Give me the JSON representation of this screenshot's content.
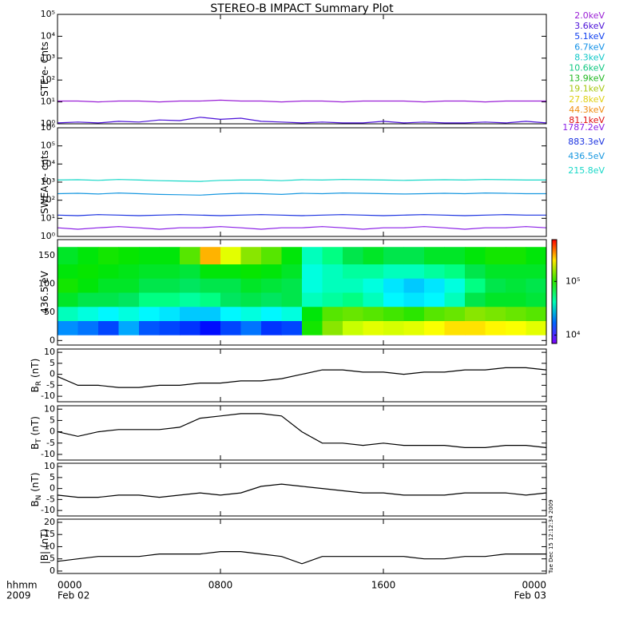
{
  "title": "STEREO-B IMPACT Summary Plot",
  "side_note": "Tue Dec 15 12:12:34 2009",
  "x_axis": {
    "label": "hhmm",
    "year": "2009",
    "xlim": [
      0,
      24
    ],
    "xticks": [
      {
        "value": 0,
        "label": "0000"
      },
      {
        "value": 8,
        "label": "0800"
      },
      {
        "value": 16,
        "label": "1600"
      },
      {
        "value": 24,
        "label": "0000"
      }
    ],
    "date_labels": [
      {
        "value": 0,
        "label": "Feb 02"
      },
      {
        "value": 24,
        "label": "Feb 03"
      }
    ]
  },
  "chart_data": [
    {
      "type": "line",
      "log_y": true,
      "y_label": "STE e- Cnts",
      "ylim": [
        1,
        100000
      ],
      "yticks": [
        {
          "value": 1,
          "label": "10⁰"
        },
        {
          "value": 10,
          "label": "10¹"
        },
        {
          "value": 100,
          "label": "10²"
        },
        {
          "value": 1000,
          "label": "10³"
        },
        {
          "value": 10000,
          "label": "10⁴"
        },
        {
          "value": 100000,
          "label": "10⁵"
        }
      ],
      "x": [
        0,
        1,
        2,
        3,
        4,
        5,
        6,
        7,
        8,
        9,
        10,
        11,
        12,
        13,
        14,
        15,
        16,
        17,
        18,
        19,
        20,
        21,
        22,
        23,
        24
      ],
      "series": [
        {
          "name": "2.0keV",
          "color": "#9a1fd6",
          "values": [
            11,
            11,
            10,
            11,
            11,
            10,
            11,
            11,
            12,
            11,
            11,
            10,
            11,
            11,
            10,
            11,
            11,
            11,
            10,
            11,
            11,
            10,
            11,
            11,
            11
          ]
        },
        {
          "name": "3.6keV",
          "color": "#4b10d8",
          "values": [
            1.1,
            1.2,
            1.1,
            1.3,
            1.2,
            1.5,
            1.4,
            2,
            1.6,
            1.8,
            1.3,
            1.2,
            1.1,
            1.2,
            1.1,
            1.1,
            1.3,
            1.1,
            1.2,
            1.1,
            1.1,
            1.2,
            1.1,
            1.3,
            1.1
          ]
        },
        {
          "name": "5.1keV",
          "color": "#1040f0",
          "values": [
            null,
            null,
            null,
            null,
            null,
            null,
            null,
            null,
            null,
            null,
            null,
            null,
            null,
            null,
            null,
            null,
            null,
            null,
            null,
            null,
            null,
            null,
            null,
            null,
            null
          ]
        },
        {
          "name": "6.7keV",
          "color": "#1090e8",
          "values": [
            null,
            null,
            null,
            null,
            null,
            null,
            null,
            null,
            null,
            null,
            null,
            null,
            null,
            null,
            null,
            null,
            null,
            null,
            null,
            null,
            null,
            null,
            null,
            null,
            null
          ]
        },
        {
          "name": "8.3keV",
          "color": "#10c8c8",
          "values": [
            null,
            null,
            null,
            null,
            null,
            null,
            null,
            null,
            null,
            null,
            null,
            null,
            null,
            null,
            null,
            null,
            null,
            null,
            null,
            null,
            null,
            null,
            null,
            null,
            null
          ]
        },
        {
          "name": "10.6keV",
          "color": "#10c880",
          "values": [
            null,
            null,
            null,
            null,
            null,
            null,
            null,
            null,
            null,
            null,
            null,
            null,
            null,
            null,
            null,
            null,
            null,
            null,
            null,
            null,
            null,
            null,
            null,
            null,
            null
          ]
        },
        {
          "name": "13.9keV",
          "color": "#20b820",
          "values": [
            null,
            null,
            null,
            null,
            null,
            null,
            null,
            null,
            null,
            null,
            null,
            null,
            null,
            null,
            null,
            null,
            null,
            null,
            null,
            null,
            null,
            null,
            null,
            null,
            null
          ]
        },
        {
          "name": "19.1keV",
          "color": "#a8c810",
          "values": [
            null,
            null,
            null,
            null,
            null,
            null,
            null,
            null,
            null,
            null,
            null,
            null,
            null,
            null,
            null,
            null,
            null,
            null,
            null,
            null,
            null,
            null,
            null,
            null,
            null
          ]
        },
        {
          "name": "27.8keV",
          "color": "#e0d010",
          "values": [
            null,
            null,
            null,
            null,
            null,
            null,
            null,
            null,
            null,
            null,
            null,
            null,
            null,
            null,
            null,
            null,
            null,
            null,
            null,
            null,
            null,
            null,
            null,
            null,
            null
          ]
        },
        {
          "name": "44.3keV",
          "color": "#f08c10",
          "values": [
            null,
            null,
            null,
            null,
            null,
            null,
            null,
            null,
            null,
            null,
            null,
            null,
            null,
            null,
            null,
            null,
            null,
            null,
            null,
            null,
            null,
            null,
            null,
            null,
            null
          ]
        },
        {
          "name": "81.1keV",
          "color": "#e01010",
          "values": [
            null,
            null,
            null,
            null,
            null,
            null,
            null,
            null,
            null,
            null,
            null,
            null,
            null,
            null,
            null,
            null,
            null,
            null,
            null,
            null,
            null,
            null,
            null,
            null,
            null
          ]
        }
      ]
    },
    {
      "type": "line",
      "log_y": true,
      "y_label": "SWEA e- cnts",
      "ylim": [
        1,
        1000000
      ],
      "yticks": [
        {
          "value": 1,
          "label": "10⁰"
        },
        {
          "value": 10,
          "label": "10¹"
        },
        {
          "value": 100,
          "label": "10²"
        },
        {
          "value": 1000,
          "label": "10³"
        },
        {
          "value": 10000,
          "label": "10⁴"
        },
        {
          "value": 100000,
          "label": "10⁵"
        },
        {
          "value": 1000000,
          "label": "10⁶"
        }
      ],
      "x": [
        0,
        1,
        2,
        3,
        4,
        5,
        6,
        7,
        8,
        9,
        10,
        11,
        12,
        13,
        14,
        15,
        16,
        17,
        18,
        19,
        20,
        21,
        22,
        23,
        24
      ],
      "series": [
        {
          "name": "1787.2eV",
          "color": "#8a1ee6",
          "values": [
            3,
            2.5,
            3,
            3.5,
            3,
            2.5,
            3,
            3,
            3.5,
            3,
            2.5,
            3,
            3,
            3.5,
            3,
            2.5,
            3,
            3,
            3.5,
            3,
            2.5,
            3,
            3,
            3.5,
            3
          ]
        },
        {
          "name": "883.3eV",
          "color": "#1830e0",
          "values": [
            15,
            14,
            16,
            15,
            14,
            15,
            16,
            15,
            14,
            15,
            16,
            15,
            14,
            15,
            16,
            15,
            14,
            15,
            16,
            15,
            14,
            15,
            16,
            15,
            15
          ]
        },
        {
          "name": "436.5eV",
          "color": "#1898e0",
          "values": [
            230,
            240,
            220,
            250,
            230,
            210,
            200,
            190,
            220,
            240,
            230,
            210,
            240,
            230,
            250,
            240,
            230,
            220,
            230,
            240,
            230,
            250,
            240,
            230,
            230
          ]
        },
        {
          "name": "215.8eV",
          "color": "#18d8c8",
          "values": [
            1300,
            1350,
            1250,
            1400,
            1300,
            1200,
            1150,
            1100,
            1250,
            1300,
            1300,
            1200,
            1350,
            1300,
            1400,
            1350,
            1300,
            1250,
            1300,
            1350,
            1300,
            1400,
            1350,
            1300,
            1300
          ]
        }
      ]
    },
    {
      "type": "heatmap",
      "y_label": "436.5 eV",
      "ylim": [
        -8,
        178
      ],
      "yticks": [
        0,
        50,
        100,
        150
      ],
      "x_bins": [
        0,
        1,
        2,
        3,
        4,
        5,
        6,
        7,
        8,
        9,
        10,
        11,
        12,
        13,
        14,
        15,
        16,
        17,
        18,
        19,
        20,
        21,
        22,
        23,
        24
      ],
      "y_bins": [
        10,
        35,
        60,
        85,
        110,
        135,
        165
      ],
      "color_lim": [
        7000,
        600000
      ],
      "color_ticks": [
        {
          "value": 10000,
          "label": "10⁴"
        },
        {
          "value": 100000,
          "label": "10⁵"
        }
      ],
      "values": [
        [
          20000,
          18000,
          15000,
          22000,
          16000,
          15000,
          14000,
          12000,
          15000,
          18000,
          14000,
          15000,
          90000,
          150000,
          180000,
          200000,
          190000,
          200000,
          220000,
          250000,
          250000,
          230000,
          220000,
          200000
        ],
        [
          40000,
          35000,
          30000,
          35000,
          30000,
          28000,
          25000,
          25000,
          30000,
          35000,
          30000,
          35000,
          80000,
          120000,
          130000,
          120000,
          110000,
          100000,
          120000,
          130000,
          150000,
          140000,
          130000,
          120000
        ],
        [
          70000,
          60000,
          60000,
          55000,
          50000,
          50000,
          45000,
          50000,
          55000,
          60000,
          55000,
          60000,
          40000,
          45000,
          50000,
          40000,
          30000,
          28000,
          30000,
          40000,
          60000,
          70000,
          70000,
          65000
        ],
        [
          90000,
          80000,
          70000,
          70000,
          60000,
          60000,
          55000,
          60000,
          60000,
          70000,
          65000,
          60000,
          35000,
          40000,
          40000,
          35000,
          28000,
          25000,
          28000,
          35000,
          50000,
          60000,
          65000,
          60000
        ],
        [
          80000,
          85000,
          80000,
          75000,
          70000,
          70000,
          65000,
          80000,
          80000,
          85000,
          80000,
          70000,
          35000,
          40000,
          45000,
          45000,
          40000,
          40000,
          45000,
          50000,
          60000,
          70000,
          70000,
          70000
        ],
        [
          70000,
          80000,
          90000,
          85000,
          80000,
          80000,
          120000,
          300000,
          200000,
          150000,
          120000,
          80000,
          40000,
          50000,
          60000,
          70000,
          60000,
          60000,
          70000,
          70000,
          80000,
          90000,
          90000,
          80000
        ]
      ]
    },
    {
      "type": "line",
      "y_label": "B",
      "y_label_sub": "R",
      "y_label_unit": " (nT)",
      "ylim": [
        -12.5,
        11.5
      ],
      "yticks": [
        -10,
        -5,
        0,
        5,
        10
      ],
      "x": [
        0,
        1,
        2,
        3,
        4,
        5,
        6,
        7,
        8,
        9,
        10,
        11,
        12,
        13,
        14,
        15,
        16,
        17,
        18,
        19,
        20,
        21,
        22,
        23,
        24
      ],
      "series": [
        {
          "color": "#000000",
          "values": [
            -1,
            -5,
            -5,
            -6,
            -6,
            -5,
            -5,
            -4,
            -4,
            -3,
            -3,
            -2,
            0,
            2,
            2,
            1,
            1,
            0,
            1,
            1,
            2,
            2,
            3,
            3,
            2
          ]
        }
      ]
    },
    {
      "type": "line",
      "y_label": "B",
      "y_label_sub": "T",
      "y_label_unit": " (nT)",
      "ylim": [
        -12.5,
        11.5
      ],
      "yticks": [
        -10,
        -5,
        0,
        5,
        10
      ],
      "x": [
        0,
        1,
        2,
        3,
        4,
        5,
        6,
        7,
        8,
        9,
        10,
        11,
        12,
        13,
        14,
        15,
        16,
        17,
        18,
        19,
        20,
        21,
        22,
        23,
        24
      ],
      "series": [
        {
          "color": "#000000",
          "values": [
            0,
            -2,
            0,
            1,
            1,
            1,
            2,
            6,
            7,
            8,
            8,
            7,
            0,
            -5,
            -5,
            -6,
            -5,
            -6,
            -6,
            -6,
            -7,
            -7,
            -6,
            -6,
            -7
          ]
        }
      ]
    },
    {
      "type": "line",
      "y_label": "B",
      "y_label_sub": "N",
      "y_label_unit": " (nT)",
      "ylim": [
        -12.5,
        11.5
      ],
      "yticks": [
        -10,
        -5,
        0,
        5,
        10
      ],
      "x": [
        0,
        1,
        2,
        3,
        4,
        5,
        6,
        7,
        8,
        9,
        10,
        11,
        12,
        13,
        14,
        15,
        16,
        17,
        18,
        19,
        20,
        21,
        22,
        23,
        24
      ],
      "series": [
        {
          "color": "#000000",
          "values": [
            -3,
            -4,
            -4,
            -3,
            -3,
            -4,
            -3,
            -2,
            -3,
            -2,
            1,
            2,
            1,
            0,
            -1,
            -2,
            -2,
            -3,
            -3,
            -3,
            -2,
            -2,
            -2,
            -3,
            -2
          ]
        }
      ]
    },
    {
      "type": "line",
      "y_label": "|B| (nT)",
      "ylim": [
        -1,
        21.3
      ],
      "yticks": [
        0,
        5,
        10,
        15,
        20
      ],
      "x": [
        0,
        1,
        2,
        3,
        4,
        5,
        6,
        7,
        8,
        9,
        10,
        11,
        12,
        13,
        14,
        15,
        16,
        17,
        18,
        19,
        20,
        21,
        22,
        23,
        24
      ],
      "series": [
        {
          "color": "#000000",
          "values": [
            4,
            5,
            6,
            6,
            6,
            7,
            7,
            7,
            8,
            8,
            7,
            6,
            3,
            6,
            6,
            6,
            6,
            6,
            5,
            5,
            6,
            6,
            7,
            7,
            7
          ]
        }
      ]
    }
  ]
}
